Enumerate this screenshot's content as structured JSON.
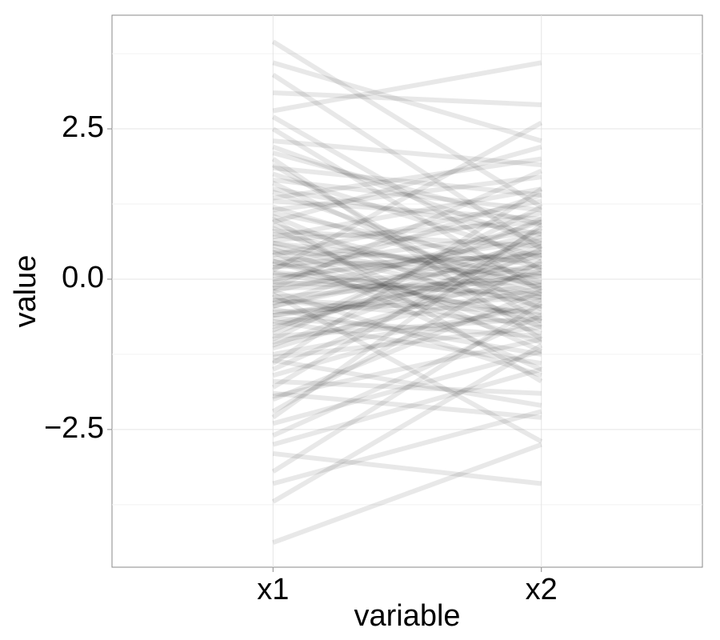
{
  "chart_data": {
    "type": "parallel",
    "xlabel": "variable",
    "ylabel": "value",
    "categories": [
      "x1",
      "x2"
    ],
    "color": "#000000",
    "alpha": 0.09,
    "ylim": [
      -4.79,
      4.39
    ],
    "yticks": [
      {
        "value": -2.5,
        "label": "−2.5"
      },
      {
        "value": 0,
        "label": "0.0"
      },
      {
        "value": 2.5,
        "label": "2.5"
      }
    ],
    "minor_yticks": [
      -3.75,
      -1.25,
      1.25,
      3.75
    ],
    "grid": true,
    "values": [
      [
        3.95,
        1.2
      ],
      [
        -4.38,
        -2.75
      ],
      [
        3.4,
        0.5
      ],
      [
        -3.7,
        -1.1
      ],
      [
        2.8,
        3.6
      ],
      [
        -2.9,
        -3.4
      ],
      [
        0.12,
        -0.35
      ],
      [
        -0.45,
        0.6
      ],
      [
        1.1,
        0.2
      ],
      [
        -1.3,
        -0.8
      ],
      [
        0.7,
        1.5
      ],
      [
        -0.2,
        -1.6
      ],
      [
        2.1,
        0.9
      ],
      [
        -2.2,
        0.3
      ],
      [
        0.35,
        0.05
      ],
      [
        -0.8,
        0.4
      ],
      [
        1.6,
        -0.5
      ],
      [
        -1.7,
        -1.9
      ],
      [
        0.95,
        2.2
      ],
      [
        -0.05,
        -0.25
      ],
      [
        0.5,
        -0.9
      ],
      [
        -0.6,
        -0.1
      ],
      [
        1.3,
        1.0
      ],
      [
        -1.0,
        1.2
      ],
      [
        0.2,
        0.8
      ],
      [
        -0.35,
        -0.55
      ],
      [
        2.5,
        -0.2
      ],
      [
        -2.6,
        -0.6
      ],
      [
        0.85,
        -1.2
      ],
      [
        -1.15,
        0.15
      ],
      [
        0.05,
        0.45
      ],
      [
        -0.15,
        1.8
      ],
      [
        1.85,
        1.4
      ],
      [
        -1.9,
        -2.3
      ],
      [
        0.6,
        0.1
      ],
      [
        -0.7,
        -1.4
      ],
      [
        1.45,
        -0.05
      ],
      [
        -0.4,
        0.95
      ],
      [
        0.3,
        -0.7
      ],
      [
        -0.9,
        0.7
      ],
      [
        3.1,
        2.9
      ],
      [
        -3.2,
        -0.4
      ],
      [
        0.15,
        2.6
      ],
      [
        -0.25,
        -2.7
      ],
      [
        1.0,
        -1.7
      ],
      [
        -1.5,
        0.5
      ],
      [
        0.45,
        0.3
      ],
      [
        -0.55,
        -0.3
      ],
      [
        2.3,
        1.9
      ],
      [
        -2.4,
        -1.2
      ],
      [
        0.8,
        0.55
      ],
      [
        -0.1,
        0.2
      ],
      [
        1.2,
        -0.15
      ],
      [
        -1.25,
        -0.45
      ],
      [
        0.25,
        1.1
      ],
      [
        -0.65,
        -0.95
      ],
      [
        1.75,
        0.35
      ],
      [
        -1.8,
        0.85
      ],
      [
        0.55,
        -0.45
      ],
      [
        -0.3,
        0.05
      ],
      [
        2.0,
        -1.0
      ],
      [
        -2.0,
        -0.2
      ],
      [
        0.4,
        1.3
      ],
      [
        -0.5,
        -1.25
      ],
      [
        1.5,
        0.75
      ],
      [
        -1.4,
        1.5
      ],
      [
        0.1,
        -0.6
      ],
      [
        -0.75,
        0.25
      ],
      [
        0.9,
        -0.25
      ],
      [
        -0.95,
        -0.65
      ],
      [
        2.7,
        0.15
      ],
      [
        -2.75,
        -1.5
      ],
      [
        0.65,
        0.95
      ],
      [
        -0.15,
        -0.05
      ],
      [
        1.35,
        2.0
      ],
      [
        -1.35,
        -2.1
      ],
      [
        0.0,
        0.65
      ],
      [
        -0.85,
        1.0
      ],
      [
        1.05,
        -0.8
      ],
      [
        -1.05,
        -0.15
      ],
      [
        3.6,
        2.3
      ],
      [
        -3.4,
        -2.2
      ],
      [
        0.75,
        -0.1
      ],
      [
        -0.45,
        0.45
      ],
      [
        1.65,
        1.15
      ],
      [
        -1.6,
        -0.35
      ],
      [
        0.3,
        -1.05
      ],
      [
        -0.2,
        0.75
      ],
      [
        2.2,
        0.6
      ],
      [
        -2.3,
        0.9
      ],
      [
        0.6,
        -0.3
      ],
      [
        -0.6,
        0.1
      ],
      [
        1.9,
        -0.7
      ],
      [
        -1.95,
        -1.0
      ],
      [
        0.2,
        0.4
      ],
      [
        -0.35,
        -0.75
      ],
      [
        1.15,
        1.7
      ],
      [
        -1.1,
        0.55
      ],
      [
        0.45,
        -1.5
      ],
      [
        -0.05,
        1.4
      ]
    ]
  }
}
